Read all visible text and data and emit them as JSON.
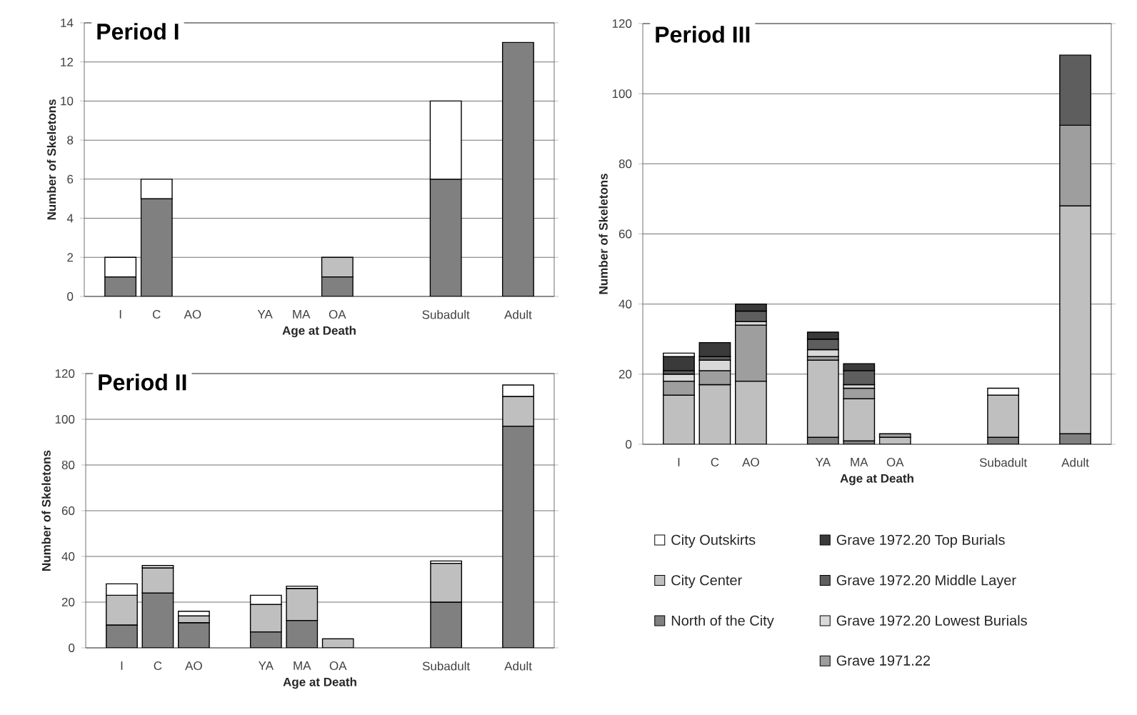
{
  "chart_data": [
    {
      "type": "bar",
      "stacked": true,
      "title": "Period I",
      "xlabel": "Age at Death",
      "ylabel": "Number of Skeletons",
      "categories": [
        "I",
        "C",
        "AO",
        null,
        "YA",
        "MA",
        "OA",
        null,
        null,
        "Subadult",
        null,
        "Adult"
      ],
      "ylim": [
        0,
        14
      ],
      "yticks": [
        0,
        2,
        4,
        6,
        8,
        10,
        12,
        14
      ],
      "grid": "y",
      "series": [
        {
          "color": "#808080",
          "values": [
            1,
            5,
            null,
            null,
            null,
            null,
            1,
            null,
            null,
            6,
            null,
            13
          ]
        },
        {
          "color": "#bfbfbf",
          "values": [
            null,
            null,
            null,
            null,
            null,
            null,
            1,
            null,
            null,
            null,
            null,
            null
          ]
        },
        {
          "color": "#ffffff",
          "values": [
            1,
            1,
            null,
            null,
            null,
            null,
            null,
            null,
            null,
            4,
            null,
            null
          ]
        }
      ]
    },
    {
      "type": "bar",
      "stacked": true,
      "title": "Period II",
      "xlabel": "Age at Death",
      "ylabel": "Number of Skeletons",
      "categories": [
        "I",
        "C",
        "AO",
        null,
        "YA",
        "MA",
        "OA",
        null,
        null,
        "Subadult",
        null,
        "Adult"
      ],
      "ylim": [
        0,
        120
      ],
      "yticks": [
        0,
        20,
        40,
        60,
        80,
        100,
        120
      ],
      "grid": "y",
      "series": [
        {
          "color": "#808080",
          "values": [
            10,
            24,
            11,
            null,
            7,
            12,
            null,
            null,
            null,
            20,
            null,
            97
          ]
        },
        {
          "color": "#bfbfbf",
          "values": [
            13,
            11,
            3,
            null,
            12,
            14,
            4,
            null,
            null,
            17,
            null,
            13
          ]
        },
        {
          "color": "#ffffff",
          "values": [
            5,
            1,
            2,
            null,
            4,
            1,
            null,
            null,
            null,
            1,
            null,
            5
          ]
        }
      ]
    },
    {
      "type": "bar",
      "stacked": true,
      "title": "Period III",
      "xlabel": "Age at Death",
      "ylabel": "Number of Skeletons",
      "categories": [
        "I",
        "C",
        "AO",
        null,
        "YA",
        "MA",
        "OA",
        null,
        null,
        "Subadult",
        null,
        "Adult"
      ],
      "ylim": [
        0,
        120
      ],
      "yticks": [
        0,
        20,
        40,
        60,
        80,
        100,
        120
      ],
      "grid": "y",
      "legend": "bottom",
      "series": [
        {
          "name": "North of the City",
          "color": "#808080",
          "values": [
            null,
            null,
            null,
            null,
            2,
            1,
            null,
            null,
            null,
            2,
            null,
            3
          ]
        },
        {
          "name": "City Center",
          "color": "#bfbfbf",
          "values": [
            14,
            17,
            18,
            null,
            22,
            12,
            2,
            null,
            null,
            12,
            null,
            65
          ]
        },
        {
          "name": "Grave 1971.22",
          "color": "#9e9e9e",
          "values": [
            4,
            4,
            16,
            null,
            1,
            3,
            1,
            null,
            null,
            null,
            null,
            23
          ]
        },
        {
          "name": "Grave 1972.20 Lowest Burials",
          "color": "#d9d9d9",
          "values": [
            2,
            3,
            1,
            null,
            2,
            1,
            null,
            null,
            null,
            null,
            null,
            null
          ]
        },
        {
          "name": "Grave 1972.20 Middle Layer",
          "color": "#5e5e5e",
          "values": [
            1,
            1,
            3,
            null,
            3,
            4,
            null,
            null,
            null,
            null,
            null,
            20
          ]
        },
        {
          "name": "Grave 1972.20 Top Burials",
          "color": "#3a3a3a",
          "values": [
            4,
            4,
            2,
            null,
            2,
            2,
            null,
            null,
            null,
            null,
            null,
            null
          ]
        },
        {
          "name": "City Outskirts",
          "color": "#ffffff",
          "values": [
            1,
            null,
            null,
            null,
            null,
            null,
            null,
            null,
            null,
            2,
            null,
            null
          ]
        }
      ]
    }
  ]
}
